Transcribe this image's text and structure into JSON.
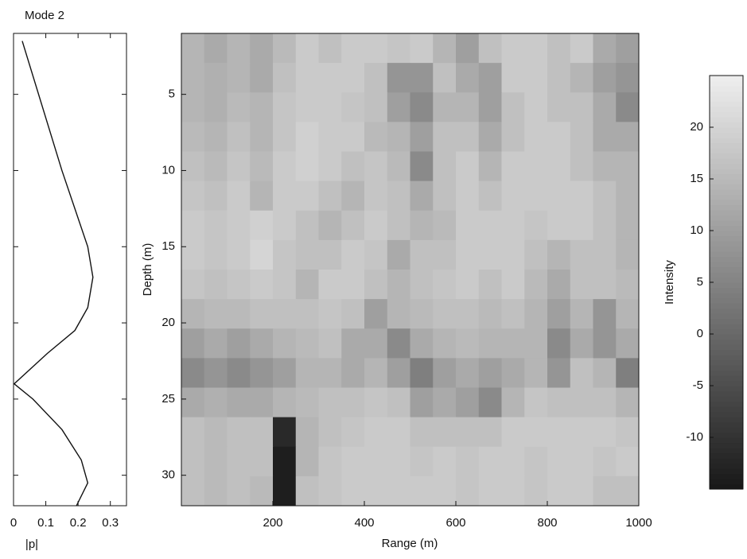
{
  "chart_data": [
    {
      "type": "line",
      "title": "Mode 2",
      "x_label": "|p|",
      "depth": [
        1.5,
        10,
        15,
        17,
        19,
        20.5,
        22,
        24,
        25,
        27,
        29,
        30.5,
        32
      ],
      "values": [
        0.027,
        0.15,
        0.23,
        0.246,
        0.23,
        0.19,
        0.105,
        0.002,
        0.06,
        0.15,
        0.21,
        0.23,
        0.195
      ],
      "color": "#111111",
      "xlim": [
        0,
        0.35
      ],
      "xticks": [
        0,
        0.1,
        0.2,
        0.3
      ],
      "ylim": [
        1,
        32
      ],
      "yticks": [
        5,
        10,
        15,
        20,
        25,
        30
      ]
    },
    {
      "type": "heatmap",
      "x_label": "Range (m)",
      "y_label": "Depth (m)",
      "xlim": [
        0,
        1000
      ],
      "xticks": [
        200,
        400,
        600,
        800,
        1000
      ],
      "ylim": [
        1,
        32
      ],
      "yticks": [
        5,
        10,
        15,
        20,
        25,
        30
      ],
      "colorbar_label": "Intensity",
      "clim": [
        -15,
        25
      ],
      "cticks": [
        -10,
        -5,
        0,
        5,
        10,
        15,
        20
      ],
      "z": [
        [
          14,
          12,
          14,
          12,
          15,
          18,
          16,
          18,
          18,
          17,
          18,
          14,
          10,
          16,
          18,
          18,
          16,
          18,
          12,
          10
        ],
        [
          14,
          13,
          14,
          12,
          16,
          18,
          18,
          18,
          16,
          8,
          8,
          16,
          12,
          10,
          18,
          18,
          16,
          14,
          10,
          8
        ],
        [
          14,
          13,
          15,
          14,
          17,
          18,
          18,
          17,
          16,
          10,
          6,
          14,
          14,
          10,
          16,
          18,
          16,
          16,
          12,
          6
        ],
        [
          15,
          14,
          16,
          14,
          17,
          19,
          18,
          18,
          15,
          14,
          10,
          16,
          16,
          12,
          16,
          18,
          18,
          16,
          12,
          12
        ],
        [
          16,
          15,
          17,
          15,
          18,
          19,
          18,
          16,
          17,
          15,
          6,
          16,
          18,
          14,
          18,
          18,
          18,
          16,
          14,
          14
        ],
        [
          17,
          16,
          18,
          14,
          18,
          18,
          16,
          14,
          17,
          16,
          12,
          16,
          18,
          16,
          18,
          18,
          18,
          18,
          16,
          14
        ],
        [
          18,
          17,
          18,
          19,
          18,
          16,
          14,
          16,
          18,
          16,
          14,
          15,
          18,
          18,
          18,
          17,
          18,
          18,
          16,
          14
        ],
        [
          18,
          17,
          18,
          20,
          17,
          16,
          16,
          18,
          17,
          12,
          16,
          16,
          18,
          18,
          18,
          16,
          14,
          16,
          16,
          14
        ],
        [
          17,
          16,
          17,
          18,
          17,
          14,
          18,
          18,
          16,
          14,
          16,
          17,
          18,
          16,
          18,
          15,
          12,
          16,
          16,
          15
        ],
        [
          14,
          15,
          15,
          16,
          16,
          16,
          17,
          16,
          10,
          14,
          15,
          16,
          16,
          15,
          16,
          14,
          10,
          14,
          8,
          14
        ],
        [
          10,
          12,
          10,
          12,
          14,
          15,
          16,
          12,
          12,
          6,
          12,
          14,
          15,
          14,
          14,
          14,
          6,
          12,
          8,
          12
        ],
        [
          6,
          8,
          6,
          8,
          10,
          14,
          14,
          12,
          14,
          10,
          4,
          10,
          12,
          10,
          12,
          14,
          8,
          16,
          14,
          4
        ],
        [
          12,
          13,
          12,
          12,
          14,
          15,
          16,
          16,
          17,
          16,
          10,
          12,
          10,
          6,
          14,
          17,
          16,
          16,
          16,
          14
        ],
        [
          16,
          15,
          16,
          16,
          -12,
          14,
          16,
          17,
          18,
          18,
          16,
          16,
          16,
          16,
          18,
          18,
          18,
          18,
          18,
          17
        ],
        [
          16,
          15,
          16,
          16,
          -14,
          14,
          17,
          18,
          18,
          18,
          17,
          18,
          17,
          18,
          18,
          17,
          18,
          18,
          17,
          18
        ],
        [
          16,
          15,
          16,
          15,
          -14,
          16,
          17,
          18,
          18,
          18,
          18,
          18,
          17,
          18,
          18,
          17,
          18,
          18,
          16,
          16
        ]
      ]
    }
  ]
}
